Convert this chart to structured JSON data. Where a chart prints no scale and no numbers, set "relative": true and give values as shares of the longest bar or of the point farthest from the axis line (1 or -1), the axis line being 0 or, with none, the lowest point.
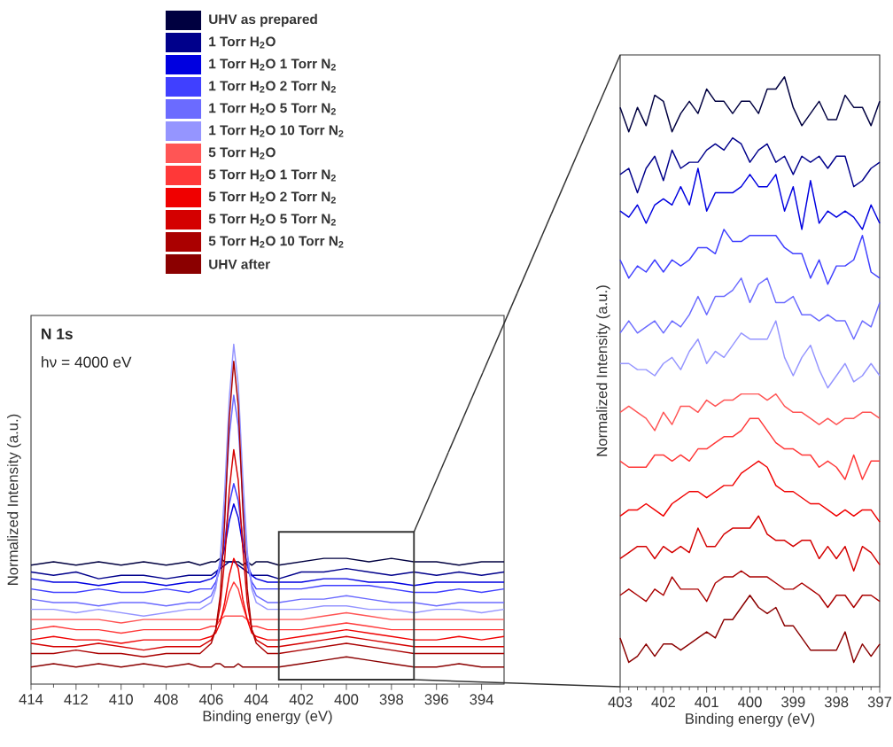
{
  "chart_data": [
    {
      "type": "line",
      "relative": true,
      "xlabel": "Binding energy (eV)",
      "ylabel": "Normalized Intensity (a.u.)",
      "annotations": [
        "N 1s",
        "hν = 4000 eV"
      ],
      "xlim": [
        414,
        393
      ],
      "xticks": [
        414,
        412,
        410,
        408,
        406,
        404,
        402,
        400,
        398,
        396,
        394
      ],
      "legend": "top",
      "x": [
        414,
        413,
        412,
        411,
        410,
        409,
        408,
        407,
        406.5,
        406,
        405.8,
        405.6,
        405.4,
        405.2,
        405,
        404.8,
        404.6,
        404.4,
        404.2,
        404,
        403.5,
        403,
        402,
        401,
        400,
        399,
        398,
        397,
        396,
        395,
        394,
        393
      ],
      "series": [
        {
          "name": "UHV as prepared",
          "color": "#000040",
          "values": [
            0.35,
            0.36,
            0.35,
            0.36,
            0.35,
            0.36,
            0.35,
            0.36,
            0.35,
            0.36,
            0.36,
            0.37,
            0.36,
            0.36,
            0.36,
            0.36,
            0.35,
            0.36,
            0.35,
            0.36,
            0.36,
            0.35,
            0.36,
            0.37,
            0.37,
            0.36,
            0.37,
            0.36,
            0.36,
            0.35,
            0.36,
            0.36
          ]
        },
        {
          "name": "1 Torr H$_{2}$O",
          "color": "#00008b",
          "values": [
            0.33,
            0.32,
            0.33,
            0.31,
            0.32,
            0.32,
            0.31,
            0.32,
            0.32,
            0.32,
            0.33,
            0.34,
            0.35,
            0.36,
            0.36,
            0.35,
            0.34,
            0.33,
            0.32,
            0.32,
            0.32,
            0.31,
            0.33,
            0.33,
            0.34,
            0.33,
            0.32,
            0.33,
            0.32,
            0.33,
            0.32,
            0.33
          ]
        },
        {
          "name": "1 Torr H$_{2}$O 1 Torr N$_{2}$",
          "color": "#0000e0",
          "values": [
            0.31,
            0.3,
            0.3,
            0.29,
            0.3,
            0.3,
            0.29,
            0.3,
            0.3,
            0.31,
            0.32,
            0.35,
            0.4,
            0.48,
            0.53,
            0.49,
            0.41,
            0.35,
            0.32,
            0.31,
            0.3,
            0.3,
            0.3,
            0.31,
            0.31,
            0.3,
            0.3,
            0.29,
            0.3,
            0.3,
            0.3,
            0.3
          ]
        },
        {
          "name": "1 Torr H$_{2}$O 2 Torr N$_{2}$",
          "color": "#4040ff",
          "values": [
            0.28,
            0.27,
            0.27,
            0.28,
            0.27,
            0.27,
            0.28,
            0.27,
            0.28,
            0.28,
            0.3,
            0.34,
            0.42,
            0.53,
            0.59,
            0.54,
            0.43,
            0.35,
            0.3,
            0.28,
            0.28,
            0.28,
            0.28,
            0.29,
            0.29,
            0.29,
            0.28,
            0.27,
            0.27,
            0.28,
            0.27,
            0.28
          ]
        },
        {
          "name": "1 Torr H$_{2}$O 5 Torr N$_{2}$",
          "color": "#6b6bff",
          "values": [
            0.25,
            0.24,
            0.24,
            0.23,
            0.24,
            0.24,
            0.23,
            0.24,
            0.24,
            0.26,
            0.29,
            0.36,
            0.52,
            0.73,
            0.85,
            0.76,
            0.55,
            0.38,
            0.29,
            0.26,
            0.24,
            0.24,
            0.25,
            0.25,
            0.26,
            0.25,
            0.24,
            0.24,
            0.23,
            0.24,
            0.24,
            0.24
          ]
        },
        {
          "name": "1 Torr H$_{2}$O 10 Torr N$_{2}$",
          "color": "#9595ff",
          "values": [
            0.22,
            0.22,
            0.21,
            0.22,
            0.21,
            0.2,
            0.21,
            0.22,
            0.22,
            0.24,
            0.28,
            0.37,
            0.57,
            0.84,
            1.0,
            0.88,
            0.61,
            0.39,
            0.28,
            0.24,
            0.22,
            0.22,
            0.22,
            0.23,
            0.23,
            0.22,
            0.22,
            0.21,
            0.22,
            0.22,
            0.21,
            0.22
          ]
        },
        {
          "name": "5 Torr H$_{2}$O",
          "color": "#ff5555",
          "values": [
            0.19,
            0.19,
            0.19,
            0.19,
            0.18,
            0.19,
            0.19,
            0.19,
            0.19,
            0.19,
            0.19,
            0.19,
            0.2,
            0.2,
            0.2,
            0.2,
            0.2,
            0.19,
            0.19,
            0.19,
            0.19,
            0.19,
            0.19,
            0.2,
            0.21,
            0.2,
            0.19,
            0.19,
            0.19,
            0.19,
            0.19,
            0.19
          ]
        },
        {
          "name": "5 Torr H$_{2}$O 1 Torr N$_{2}$",
          "color": "#ff3838",
          "values": [
            0.16,
            0.17,
            0.16,
            0.16,
            0.15,
            0.16,
            0.16,
            0.16,
            0.16,
            0.17,
            0.17,
            0.19,
            0.22,
            0.27,
            0.3,
            0.28,
            0.23,
            0.19,
            0.17,
            0.17,
            0.16,
            0.16,
            0.16,
            0.17,
            0.18,
            0.17,
            0.16,
            0.16,
            0.16,
            0.16,
            0.16,
            0.16
          ]
        },
        {
          "name": "5 Torr H$_{2}$O 2 Torr N$_{2}$",
          "color": "#f00000",
          "values": [
            0.13,
            0.14,
            0.13,
            0.13,
            0.12,
            0.13,
            0.13,
            0.13,
            0.13,
            0.14,
            0.15,
            0.18,
            0.24,
            0.32,
            0.37,
            0.34,
            0.25,
            0.19,
            0.15,
            0.14,
            0.13,
            0.13,
            0.14,
            0.15,
            0.16,
            0.15,
            0.14,
            0.13,
            0.13,
            0.14,
            0.13,
            0.14
          ]
        },
        {
          "name": "5 Torr H$_{2}$O 5 Torr N$_{2}$",
          "color": "#d40000",
          "values": [
            0.12,
            0.11,
            0.11,
            0.12,
            0.11,
            0.1,
            0.11,
            0.11,
            0.11,
            0.13,
            0.16,
            0.23,
            0.37,
            0.57,
            0.69,
            0.6,
            0.4,
            0.24,
            0.16,
            0.13,
            0.11,
            0.11,
            0.12,
            0.13,
            0.14,
            0.13,
            0.12,
            0.11,
            0.11,
            0.11,
            0.11,
            0.11
          ]
        },
        {
          "name": "5 Torr H$_{2}$O 10 Torr N$_{2}$",
          "color": "#aa0000",
          "values": [
            0.09,
            0.09,
            0.1,
            0.09,
            0.09,
            0.08,
            0.09,
            0.09,
            0.09,
            0.12,
            0.16,
            0.26,
            0.48,
            0.78,
            0.95,
            0.82,
            0.52,
            0.28,
            0.16,
            0.12,
            0.09,
            0.09,
            0.1,
            0.11,
            0.12,
            0.11,
            0.1,
            0.09,
            0.09,
            0.09,
            0.09,
            0.09
          ]
        },
        {
          "name": "UHV after",
          "color": "#8b0000",
          "values": [
            0.05,
            0.06,
            0.05,
            0.06,
            0.05,
            0.06,
            0.05,
            0.06,
            0.05,
            0.05,
            0.06,
            0.06,
            0.05,
            0.05,
            0.05,
            0.06,
            0.05,
            0.05,
            0.05,
            0.05,
            0.05,
            0.05,
            0.06,
            0.07,
            0.08,
            0.07,
            0.06,
            0.05,
            0.05,
            0.06,
            0.05,
            0.05
          ]
        }
      ]
    },
    {
      "type": "line",
      "relative": true,
      "xlabel": "Binding energy (eV)",
      "ylabel": "Normalized Intensity (a.u.)",
      "xlim": [
        403,
        397
      ],
      "xticks": [
        403,
        402,
        401,
        400,
        399,
        398,
        397
      ],
      "x": [
        403,
        402.8,
        402.6,
        402.4,
        402.2,
        402,
        401.8,
        401.6,
        401.4,
        401.2,
        401,
        400.8,
        400.6,
        400.4,
        400.2,
        400,
        399.8,
        399.6,
        399.4,
        399.2,
        399,
        398.8,
        398.6,
        398.4,
        398.2,
        398,
        397.8,
        397.6,
        397.4,
        397.2,
        397
      ],
      "series": [
        {
          "color": "#000040",
          "values": [
            0.95,
            0.91,
            0.95,
            0.92,
            0.97,
            0.96,
            0.91,
            0.94,
            0.96,
            0.94,
            0.98,
            0.96,
            0.96,
            0.94,
            0.96,
            0.96,
            0.94,
            0.98,
            0.98,
            1.0,
            0.95,
            0.92,
            0.94,
            0.96,
            0.93,
            0.93,
            0.97,
            0.95,
            0.95,
            0.92,
            0.96
          ]
        },
        {
          "color": "#00008b",
          "values": [
            0.84,
            0.85,
            0.81,
            0.85,
            0.87,
            0.83,
            0.88,
            0.85,
            0.86,
            0.86,
            0.88,
            0.89,
            0.88,
            0.9,
            0.89,
            0.86,
            0.88,
            0.89,
            0.86,
            0.87,
            0.84,
            0.87,
            0.86,
            0.87,
            0.85,
            0.87,
            0.87,
            0.82,
            0.83,
            0.85,
            0.86
          ]
        },
        {
          "color": "#0000e0",
          "values": [
            0.78,
            0.77,
            0.79,
            0.76,
            0.79,
            0.8,
            0.79,
            0.82,
            0.79,
            0.85,
            0.78,
            0.81,
            0.81,
            0.81,
            0.82,
            0.84,
            0.82,
            0.82,
            0.84,
            0.78,
            0.82,
            0.75,
            0.83,
            0.76,
            0.78,
            0.77,
            0.78,
            0.77,
            0.75,
            0.79,
            0.76
          ]
        },
        {
          "color": "#4040ff",
          "values": [
            0.7,
            0.67,
            0.69,
            0.68,
            0.7,
            0.68,
            0.7,
            0.69,
            0.7,
            0.72,
            0.72,
            0.71,
            0.75,
            0.73,
            0.73,
            0.74,
            0.74,
            0.74,
            0.74,
            0.72,
            0.71,
            0.71,
            0.67,
            0.7,
            0.66,
            0.69,
            0.69,
            0.7,
            0.74,
            0.68,
            0.67
          ]
        },
        {
          "color": "#6b6bff",
          "values": [
            0.58,
            0.6,
            0.58,
            0.59,
            0.6,
            0.58,
            0.6,
            0.59,
            0.61,
            0.64,
            0.61,
            0.64,
            0.64,
            0.65,
            0.67,
            0.63,
            0.66,
            0.67,
            0.63,
            0.63,
            0.64,
            0.61,
            0.61,
            0.6,
            0.61,
            0.6,
            0.6,
            0.57,
            0.6,
            0.59,
            0.63
          ]
        },
        {
          "color": "#9595ff",
          "values": [
            0.53,
            0.53,
            0.52,
            0.52,
            0.51,
            0.53,
            0.54,
            0.52,
            0.55,
            0.57,
            0.53,
            0.55,
            0.54,
            0.56,
            0.58,
            0.57,
            0.57,
            0.57,
            0.6,
            0.54,
            0.51,
            0.54,
            0.56,
            0.52,
            0.49,
            0.51,
            0.53,
            0.5,
            0.51,
            0.53,
            0.51
          ]
        },
        {
          "color": "#ff5555",
          "values": [
            0.45,
            0.46,
            0.45,
            0.44,
            0.42,
            0.45,
            0.43,
            0.46,
            0.46,
            0.45,
            0.47,
            0.46,
            0.47,
            0.47,
            0.48,
            0.48,
            0.48,
            0.47,
            0.48,
            0.46,
            0.45,
            0.45,
            0.44,
            0.43,
            0.44,
            0.43,
            0.44,
            0.44,
            0.45,
            0.45,
            0.44
          ]
        },
        {
          "color": "#ff3838",
          "values": [
            0.37,
            0.36,
            0.36,
            0.36,
            0.38,
            0.38,
            0.37,
            0.38,
            0.37,
            0.39,
            0.39,
            0.4,
            0.41,
            0.41,
            0.42,
            0.44,
            0.44,
            0.42,
            0.4,
            0.39,
            0.39,
            0.38,
            0.38,
            0.36,
            0.37,
            0.36,
            0.34,
            0.38,
            0.34,
            0.37,
            0.37
          ]
        },
        {
          "color": "#f00000",
          "values": [
            0.28,
            0.29,
            0.29,
            0.3,
            0.29,
            0.28,
            0.3,
            0.31,
            0.32,
            0.32,
            0.31,
            0.32,
            0.33,
            0.33,
            0.35,
            0.36,
            0.37,
            0.36,
            0.33,
            0.32,
            0.32,
            0.31,
            0.3,
            0.3,
            0.29,
            0.28,
            0.29,
            0.28,
            0.29,
            0.29,
            0.27
          ]
        },
        {
          "color": "#d40000",
          "values": [
            0.21,
            0.22,
            0.23,
            0.23,
            0.21,
            0.23,
            0.22,
            0.23,
            0.22,
            0.26,
            0.23,
            0.23,
            0.25,
            0.26,
            0.26,
            0.26,
            0.28,
            0.25,
            0.24,
            0.24,
            0.23,
            0.24,
            0.24,
            0.21,
            0.23,
            0.21,
            0.23,
            0.19,
            0.23,
            0.22,
            0.2
          ]
        },
        {
          "color": "#aa0000",
          "values": [
            0.15,
            0.16,
            0.15,
            0.14,
            0.16,
            0.15,
            0.18,
            0.16,
            0.16,
            0.16,
            0.14,
            0.17,
            0.18,
            0.18,
            0.19,
            0.18,
            0.18,
            0.18,
            0.17,
            0.16,
            0.16,
            0.17,
            0.16,
            0.15,
            0.13,
            0.15,
            0.15,
            0.13,
            0.15,
            0.15,
            0.14
          ]
        },
        {
          "color": "#8b0000",
          "values": [
            0.08,
            0.04,
            0.05,
            0.07,
            0.05,
            0.07,
            0.07,
            0.06,
            0.07,
            0.08,
            0.09,
            0.08,
            0.11,
            0.11,
            0.13,
            0.15,
            0.13,
            0.12,
            0.13,
            0.1,
            0.1,
            0.08,
            0.06,
            0.06,
            0.06,
            0.06,
            0.09,
            0.04,
            0.07,
            0.05,
            0.07
          ]
        }
      ]
    }
  ]
}
